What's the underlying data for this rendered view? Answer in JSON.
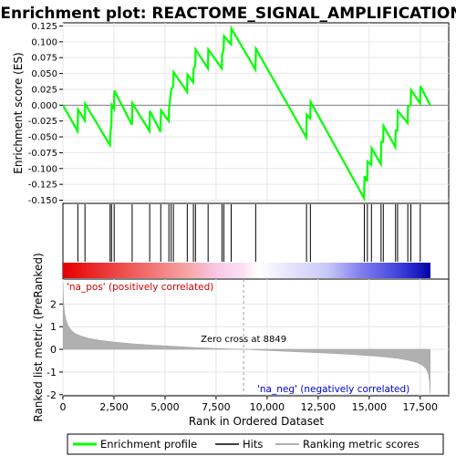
{
  "chart_data": {
    "type": "line",
    "title": "Enrichment plot: REACTOME_SIGNAL_AMPLIFICATION",
    "top_panel": {
      "ylabel": "Enrichment score (ES)",
      "ylim": [
        -0.155,
        0.13
      ],
      "yticks": [
        -0.15,
        -0.125,
        -0.1,
        -0.075,
        -0.05,
        -0.025,
        0.0,
        0.025,
        0.05,
        0.075,
        0.1,
        0.125
      ],
      "ytick_labels": [
        "-0.150",
        "-0.125",
        "-0.100",
        "-0.075",
        "-0.050",
        "-0.025",
        "0.000",
        "0.025",
        "0.050",
        "0.075",
        "0.100",
        "0.125"
      ],
      "series": [
        {
          "name": "Enrichment profile",
          "color": "#00ff00",
          "x": [
            0,
            720,
            740,
            1070,
            1090,
            2300,
            2320,
            2370,
            2390,
            2500,
            2520,
            3380,
            3400,
            4240,
            4260,
            4780,
            4800,
            5180,
            5200,
            5290,
            5310,
            5400,
            5420,
            6080,
            6100,
            6380,
            6400,
            6480,
            6500,
            7100,
            7120,
            7780,
            7800,
            7870,
            7890,
            8230,
            8250,
            9430,
            9450,
            11920,
            11940,
            12110,
            12130,
            14750,
            14770,
            14900,
            14920,
            15100,
            15120,
            15570,
            15590,
            15680,
            15700,
            16280,
            16300,
            16380,
            16400,
            16880,
            16900,
            17030,
            17050,
            17490,
            17510,
            17980
          ],
          "y": [
            0.0,
            -0.041,
            -0.007,
            -0.024,
            0.002,
            -0.063,
            -0.048,
            -0.03,
            0.0,
            -0.006,
            0.023,
            -0.031,
            0.003,
            -0.041,
            -0.009,
            -0.042,
            -0.008,
            -0.025,
            -0.005,
            0.02,
            0.025,
            0.03,
            0.052,
            0.021,
            0.048,
            0.036,
            0.058,
            0.062,
            0.088,
            0.058,
            0.088,
            0.058,
            0.08,
            0.088,
            0.109,
            0.096,
            0.121,
            0.056,
            0.089,
            -0.051,
            -0.015,
            -0.021,
            0.005,
            -0.147,
            -0.112,
            -0.12,
            -0.089,
            -0.094,
            -0.068,
            -0.093,
            -0.058,
            -0.058,
            -0.033,
            -0.066,
            -0.04,
            -0.04,
            -0.009,
            -0.028,
            -0.002,
            0.001,
            0.024,
            0.003,
            0.03,
            0.0
          ]
        }
      ]
    },
    "hits": {
      "name": "Hits",
      "color": "#000000",
      "positions": [
        730,
        1080,
        2310,
        2380,
        2510,
        3390,
        4250,
        4790,
        5190,
        5300,
        5410,
        6090,
        6390,
        6490,
        7110,
        7790,
        7880,
        8240,
        9440,
        11930,
        12120,
        14760,
        14910,
        15110,
        15580,
        15690,
        16290,
        16390,
        16890,
        17040,
        17500
      ]
    },
    "bottom_panel": {
      "ylabel": "Ranked list metric (PreRanked)",
      "xlabel": "Rank in Ordered Dataset",
      "ylim": [
        -2.05,
        3.1
      ],
      "yticks": [
        -2,
        -1,
        0,
        1,
        2
      ],
      "ytick_labels": [
        "-2",
        "-1",
        "0",
        "1",
        "2"
      ],
      "xlim": [
        0,
        18000
      ],
      "xticks": [
        0,
        2500,
        5000,
        7500,
        10000,
        12500,
        15000,
        17500
      ],
      "xtick_labels": [
        "0",
        "2,500",
        "5,000",
        "7,500",
        "10,000",
        "12,500",
        "15,000",
        "17,500"
      ],
      "metric_curve": {
        "name": "Ranking metric scores",
        "color": "#b0b0b0",
        "x": [
          0,
          30,
          80,
          150,
          250,
          400,
          600,
          900,
          1300,
          1800,
          2500,
          3500,
          4500,
          5500,
          6500,
          7500,
          8849,
          10000,
          11000,
          12000,
          13000,
          14000,
          15000,
          15800,
          16400,
          16900,
          17300,
          17600,
          17800,
          17900,
          17960,
          17985
        ],
        "y": [
          2.95,
          2.1,
          1.6,
          1.3,
          1.05,
          0.85,
          0.7,
          0.58,
          0.48,
          0.4,
          0.32,
          0.24,
          0.18,
          0.13,
          0.08,
          0.04,
          0.0,
          -0.05,
          -0.09,
          -0.13,
          -0.17,
          -0.22,
          -0.28,
          -0.34,
          -0.4,
          -0.48,
          -0.57,
          -0.7,
          -0.88,
          -1.1,
          -1.45,
          -1.95
        ]
      },
      "zero_cross": 8849,
      "zero_cross_label": "Zero cross at 8849",
      "pos_label": "'na_pos' (positively correlated)",
      "neg_label": "'na_neg' (negatively correlated)",
      "pos_color": "#cc0000",
      "neg_color": "#0000cc"
    },
    "legend": {
      "placement": "bottom",
      "items": [
        {
          "label": "Enrichment profile",
          "color": "#00ff00"
        },
        {
          "label": "Hits",
          "color": "#000000"
        },
        {
          "label": "Ranking metric scores",
          "color": "#b0b0b0"
        }
      ]
    },
    "grid": true
  }
}
